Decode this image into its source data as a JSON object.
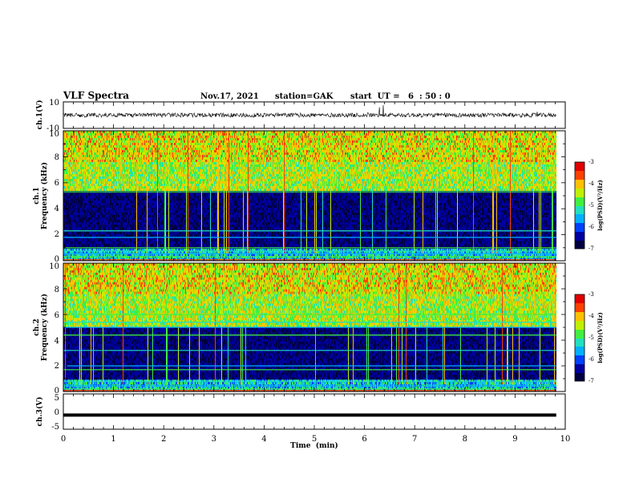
{
  "header": {
    "title": "VLF Spectra",
    "date": "Nov.17, 2021",
    "station": "station=GAK",
    "start": "start  UT =   6  : 50 : 0"
  },
  "chart_data": [
    {
      "type": "line",
      "name": "ch1-waveform",
      "ylabel": "ch.1(V)",
      "ylim": [
        -10,
        10
      ],
      "y_tick_labels": [
        "10",
        "-10"
      ],
      "typical_range": [
        -2,
        2
      ]
    },
    {
      "type": "heatmap",
      "name": "ch1-spectrogram",
      "ylabel_top": "ch.1",
      "ylabel": "Frequency (kHz)",
      "ylim": [
        0,
        10
      ],
      "y_tick_labels": [
        "0",
        "2",
        "4",
        "6",
        "8",
        "10"
      ],
      "x_data_max_min": 9.82,
      "regions": [
        {
          "freq_khz": [
            5.3,
            10
          ],
          "level": "high"
        },
        {
          "freq_khz": [
            1.0,
            5.3
          ],
          "level": "low"
        },
        {
          "freq_khz": [
            0,
            1.0
          ],
          "level": "banded"
        }
      ],
      "lines_khz": [
        0.3,
        0.55,
        0.75,
        1.0,
        1.8,
        2.3,
        5.3
      ],
      "colorbar": {
        "label": "log(PSD)(V²/Hz)",
        "range": [
          -7,
          -3
        ],
        "tick_labels": [
          "-3",
          "-4",
          "-5",
          "-6",
          "-7"
        ]
      }
    },
    {
      "type": "heatmap",
      "name": "ch2-spectrogram",
      "ylabel_top": "ch.2",
      "ylabel": "Frequency (kHz)",
      "ylim": [
        0,
        10
      ],
      "y_tick_labels": [
        "0",
        "2",
        "4",
        "6",
        "8",
        "10"
      ],
      "x_data_max_min": 9.82,
      "regions": [
        {
          "freq_khz": [
            5.0,
            10
          ],
          "level": "high"
        },
        {
          "freq_khz": [
            1.0,
            5.0
          ],
          "level": "low"
        },
        {
          "freq_khz": [
            0,
            1.0
          ],
          "level": "banded"
        }
      ],
      "lines_khz": [
        0.2,
        0.45,
        0.8,
        1.7,
        2.0,
        3.2,
        4.4,
        5.0,
        5.4,
        6.0
      ],
      "colorbar": {
        "label": "log(PSD)(V²/Hz)",
        "range": [
          -7,
          -3
        ],
        "tick_labels": [
          "-3",
          "-4",
          "-5",
          "-6",
          "-7"
        ]
      }
    },
    {
      "type": "line",
      "name": "ch3-waveform",
      "ylabel": "ch.3(V)",
      "ylim": [
        -5,
        5
      ],
      "y_tick_labels": [
        "5",
        "0",
        "-5"
      ],
      "values_constant": -1,
      "xlabel": "Time  (min)",
      "xlim": [
        0,
        10
      ],
      "x_tick_labels": [
        "0",
        "1",
        "2",
        "3",
        "4",
        "5",
        "6",
        "7",
        "8",
        "9",
        "10"
      ]
    }
  ],
  "colors": {
    "colormap": [
      "#000040",
      "#0000a0",
      "#0040ff",
      "#00b0ff",
      "#20e0c0",
      "#40f040",
      "#c0f000",
      "#ffc000",
      "#ff4000",
      "#e00000",
      "#ffffff"
    ]
  }
}
